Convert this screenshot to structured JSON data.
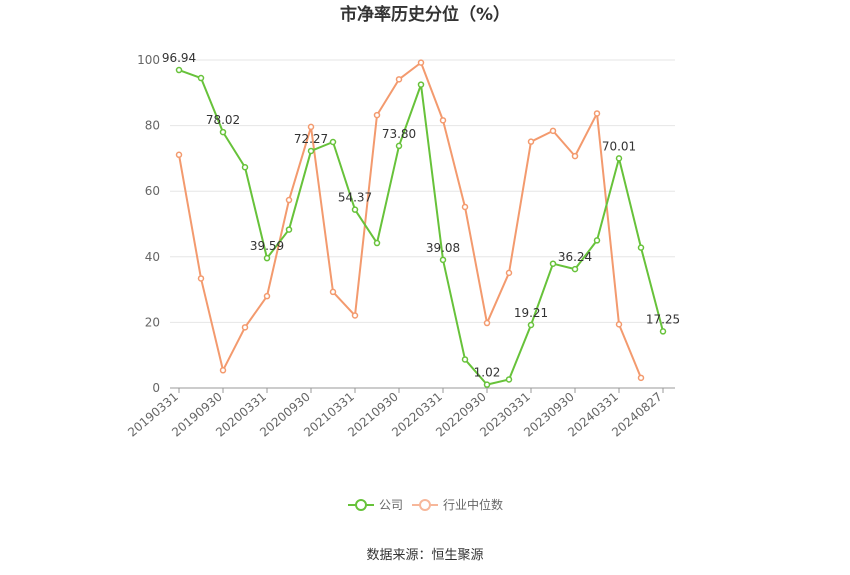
{
  "chart_data": {
    "type": "line",
    "title": "市净率历史分位（%）",
    "ylim": [
      0,
      100
    ],
    "y_ticks": [
      0,
      20,
      40,
      60,
      80,
      100
    ],
    "x_tick_labels": [
      "20190331",
      "20190930",
      "20200331",
      "20200930",
      "20210331",
      "20210930",
      "20220331",
      "20220930",
      "20230331",
      "20230930",
      "20240331",
      "20240827"
    ],
    "grid": true,
    "legend_placement": "bottom-center",
    "series": [
      {
        "name": "公司",
        "color": "#67c23a",
        "values": [
          96.94,
          94.5,
          78.02,
          67.3,
          39.59,
          48.3,
          72.27,
          75.0,
          54.37,
          44.2,
          73.8,
          92.5,
          39.08,
          8.7,
          1.02,
          2.6,
          19.21,
          37.9,
          36.24,
          45.0,
          70.01,
          42.8,
          17.25
        ],
        "labels": [
          "96.94",
          "",
          "78.02",
          "",
          "39.59",
          "",
          "72.27",
          "",
          "54.37",
          "",
          "73.80",
          "",
          "39.08",
          "",
          "1.02",
          "",
          "19.21",
          "",
          "36.24",
          "",
          "70.01",
          "",
          "17.25"
        ]
      },
      {
        "name": "行业中位数",
        "color": "#f39a6e",
        "values": [
          71.1,
          33.4,
          5.4,
          18.5,
          28.0,
          57.3,
          79.6,
          29.3,
          22.1,
          83.2,
          94.1,
          99.2,
          81.6,
          55.2,
          19.8,
          35.1,
          75.1,
          78.4,
          70.7,
          83.7,
          19.4,
          3.1,
          null
        ]
      }
    ],
    "source_text": "数据来源：恒生聚源"
  }
}
